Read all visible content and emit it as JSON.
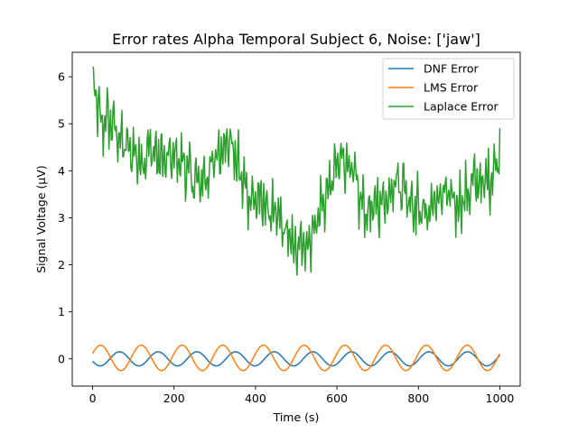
{
  "chart_data": {
    "type": "line",
    "title": "Error rates Alpha Temporal Subject 6, Noise: ['jaw']",
    "xlabel": "Time (s)",
    "ylabel": "Signal Voltage (μV)",
    "xlim": [
      -50,
      1050
    ],
    "ylim": [
      -0.58,
      6.52
    ],
    "xticks": [
      0,
      200,
      400,
      600,
      800,
      1000
    ],
    "yticks": [
      0,
      1,
      2,
      3,
      4,
      5,
      6
    ],
    "grid": false,
    "legend_position": "top-right",
    "series": [
      {
        "name": "DNF Error",
        "color": "#1f77b4",
        "wave": {
          "amplitude": 0.15,
          "period": 95,
          "phase_deg": 200,
          "offset": 0.0
        },
        "x": [
          0,
          50,
          100,
          150,
          200,
          250,
          300,
          350,
          400,
          450,
          500,
          550,
          600,
          650,
          700,
          750,
          800,
          850,
          900,
          950,
          1000
        ],
        "values": [
          -0.13,
          0.14,
          -0.14,
          0.13,
          -0.12,
          0.15,
          -0.15,
          0.14,
          -0.13,
          0.15,
          -0.15,
          0.13,
          -0.12,
          0.15,
          -0.15,
          0.14,
          -0.13,
          0.14,
          -0.13,
          0.13,
          -0.12
        ]
      },
      {
        "name": "LMS Error",
        "color": "#ff7f0e",
        "wave": {
          "amplitude": 0.27,
          "period": 100,
          "phase_deg": 20,
          "offset": 0.02
        },
        "x": [
          0,
          50,
          100,
          150,
          200,
          250,
          300,
          350,
          400,
          450,
          500,
          550,
          600,
          650,
          700,
          750,
          800,
          850,
          900,
          950,
          1000
        ],
        "values": [
          0.1,
          -0.22,
          0.26,
          -0.24,
          0.2,
          -0.25,
          0.27,
          -0.23,
          0.18,
          -0.26,
          0.25,
          -0.2,
          0.17,
          -0.24,
          0.22,
          -0.2,
          0.2,
          -0.22,
          0.24,
          -0.25,
          -0.1
        ]
      },
      {
        "name": "Laplace Error",
        "color": "#2ca02c",
        "noise_amplitude": 0.75,
        "x": [
          0,
          20,
          40,
          60,
          80,
          100,
          120,
          140,
          160,
          180,
          200,
          220,
          240,
          260,
          280,
          300,
          320,
          340,
          360,
          380,
          400,
          420,
          440,
          460,
          480,
          500,
          520,
          540,
          560,
          580,
          600,
          620,
          640,
          660,
          680,
          700,
          720,
          740,
          760,
          780,
          800,
          820,
          840,
          860,
          880,
          900,
          920,
          940,
          960,
          980,
          1000
        ],
        "values": [
          5.9,
          5.0,
          5.1,
          4.8,
          4.5,
          4.4,
          4.2,
          4.5,
          4.3,
          4.2,
          4.3,
          4.2,
          3.9,
          3.7,
          3.9,
          4.2,
          4.6,
          4.6,
          4.0,
          3.5,
          3.4,
          3.3,
          3.1,
          2.9,
          2.6,
          2.3,
          2.4,
          2.7,
          3.2,
          3.6,
          4.1,
          4.3,
          3.9,
          3.3,
          3.1,
          3.3,
          3.4,
          3.8,
          3.7,
          3.4,
          3.2,
          3.1,
          3.3,
          3.5,
          3.4,
          3.3,
          3.5,
          3.8,
          3.7,
          3.9,
          4.4
        ]
      }
    ]
  }
}
